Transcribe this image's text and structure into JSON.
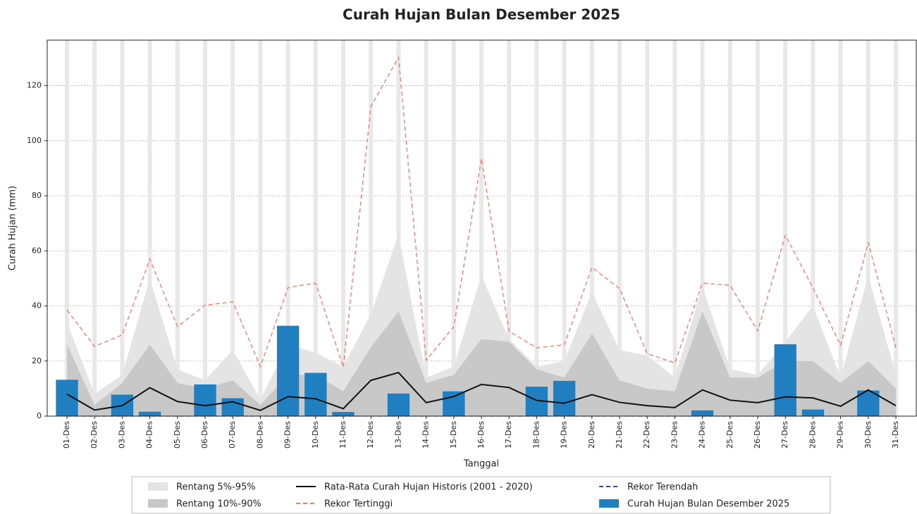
{
  "chart_data": {
    "type": "line",
    "title": "Curah Hujan Bulan Desember 2025",
    "x_label": "Tanggal",
    "y_label": "Curah Hujan (mm)",
    "categories": [
      "01-Des",
      "02-Des",
      "03-Des",
      "04-Des",
      "05-Des",
      "06-Des",
      "07-Des",
      "08-Des",
      "09-Des",
      "10-Des",
      "11-Des",
      "12-Des",
      "13-Des",
      "14-Des",
      "15-Des",
      "16-Des",
      "17-Des",
      "18-Des",
      "19-Des",
      "20-Des",
      "21-Des",
      "22-Des",
      "23-Des",
      "24-Des",
      "25-Des",
      "26-Des",
      "27-Des",
      "28-Des",
      "29-Des",
      "30-Des",
      "31-Des"
    ],
    "ylim": [
      0,
      136.5
    ],
    "yticks": [
      0,
      20,
      40,
      60,
      80,
      100,
      120
    ],
    "grid": true,
    "legend": "bottom",
    "series": [
      {
        "name": "Rentang 5%-95%",
        "type": "band",
        "color": "#e4e4e4",
        "low": [
          0,
          0,
          0,
          0,
          0,
          0,
          0,
          0,
          0,
          0,
          0,
          0,
          0,
          0,
          0,
          0,
          0,
          0,
          0,
          0,
          0,
          0,
          0,
          0,
          0,
          0,
          0,
          0,
          0,
          0,
          0
        ],
        "high": [
          34,
          8,
          15,
          50,
          17,
          13,
          24,
          6,
          26,
          23,
          18,
          37,
          66,
          14,
          18,
          51,
          28,
          18,
          20,
          45,
          24,
          22,
          14,
          47,
          17,
          15,
          27,
          40,
          14,
          51,
          15
        ]
      },
      {
        "name": "Rentang 10%-90%",
        "type": "band",
        "color": "#c8c8c8",
        "low": [
          0,
          0,
          0,
          0,
          0,
          0,
          0,
          0,
          0,
          0,
          0,
          0,
          0,
          0,
          0,
          0,
          0,
          0,
          0,
          0,
          0,
          0,
          0,
          0,
          0,
          0,
          0,
          0,
          0,
          0,
          0
        ],
        "high": [
          26,
          4,
          12,
          26,
          12,
          10,
          13,
          4,
          15,
          15,
          9,
          25,
          38,
          12,
          15,
          28,
          27,
          17,
          14,
          30,
          13,
          10,
          9,
          38,
          14,
          14,
          20,
          20,
          12,
          20,
          10
        ]
      },
      {
        "name": "Rata-Rata Curah Hujan Historis (2001 - 2020)",
        "type": "line",
        "color": "#111111",
        "linestyle": "solid",
        "values": [
          8,
          2.2,
          3.8,
          10.3,
          5.3,
          3.8,
          5.2,
          2.1,
          7.1,
          6.3,
          2.7,
          13,
          15.8,
          4.9,
          7.1,
          11.5,
          10.4,
          5.7,
          4.7,
          7.8,
          5,
          3.8,
          3.1,
          9.5,
          5.8,
          4.9,
          7,
          6.6,
          3.6,
          9.5,
          3.8
        ]
      },
      {
        "name": "Rekor Tertinggi",
        "type": "line",
        "color": "#f07a6a",
        "linestyle": "dashed",
        "values": [
          38.5,
          25.3,
          29.5,
          57,
          32.5,
          40.3,
          41.5,
          18,
          46.7,
          48.3,
          17.7,
          112.5,
          130.2,
          20.3,
          32.5,
          93.5,
          30.8,
          24.8,
          25.9,
          54,
          46.3,
          22.7,
          19.3,
          48.3,
          47.5,
          30.9,
          65.7,
          46.5,
          25.7,
          63,
          24.8
        ]
      },
      {
        "name": "Rekor Terendah",
        "type": "line",
        "color": "#2a3fd4",
        "linestyle": "dashed",
        "values": [
          0,
          0,
          0,
          0,
          0,
          0,
          0,
          0,
          0,
          0,
          0,
          0,
          0,
          0,
          0,
          0,
          0,
          0,
          0,
          0,
          0,
          0,
          0,
          0,
          0,
          0,
          0,
          0,
          0,
          0,
          0
        ]
      },
      {
        "name": "Curah Hujan Bulan Desember 2025",
        "type": "bar",
        "color": "#1f7fc0",
        "values": [
          13.2,
          0,
          7.8,
          1.6,
          0,
          11.5,
          6.5,
          0,
          32.8,
          15.7,
          1.5,
          0,
          8.2,
          0,
          9,
          0,
          0,
          10.7,
          12.8,
          0,
          0,
          0,
          0,
          2.1,
          0,
          0,
          26.1,
          2.4,
          0,
          9.3,
          0
        ]
      }
    ]
  }
}
